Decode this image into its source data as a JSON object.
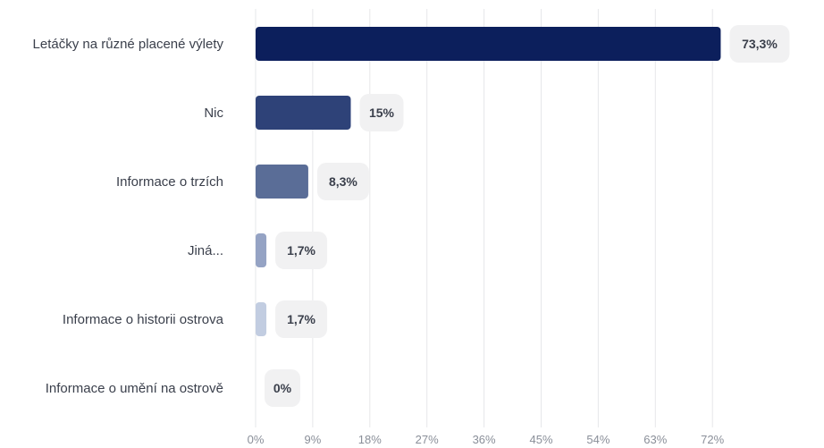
{
  "chart_data": {
    "type": "bar",
    "orientation": "horizontal",
    "categories": [
      "Letáčky na různé placené výlety",
      "Nic",
      "Informace o trzích",
      "Jiná...",
      "Informace o historii ostrova",
      "Informace o umění na ostrově"
    ],
    "values": [
      73.3,
      15,
      8.3,
      1.7,
      1.7,
      0
    ],
    "value_labels": [
      "73,3%",
      "15%",
      "8,3%",
      "1,7%",
      "1,7%",
      "0%"
    ],
    "bar_colors": [
      "#0c1f5c",
      "#2e4278",
      "#5a6d97",
      "#95a3c4",
      "#c2cde1",
      "#dde3ee"
    ],
    "x_ticks": [
      0,
      9,
      18,
      27,
      36,
      45,
      54,
      63,
      72
    ],
    "x_tick_labels": [
      "0%",
      "9%",
      "18%",
      "27%",
      "36%",
      "45%",
      "54%",
      "63%",
      "72%"
    ],
    "xlim": [
      0,
      81
    ],
    "title": "",
    "xlabel": "",
    "ylabel": "",
    "grid": true
  }
}
